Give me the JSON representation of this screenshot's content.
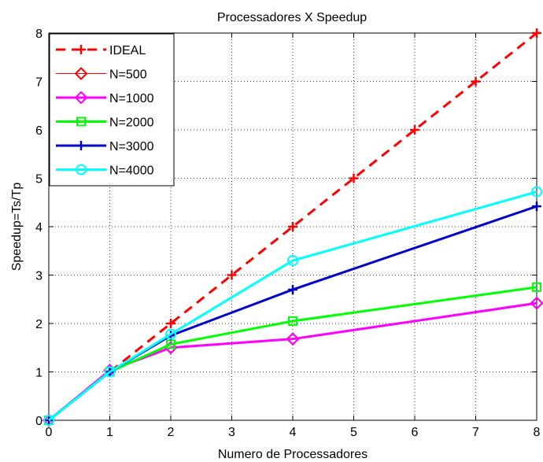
{
  "chart_data": {
    "type": "line",
    "title": "Processadores X Speedup",
    "xlabel": "Numero de Processadores",
    "ylabel": "Speedup=Ts/Tp",
    "xlim": [
      0,
      8
    ],
    "ylim": [
      0,
      8
    ],
    "xticks": [
      "0",
      "1",
      "2",
      "3",
      "4",
      "5",
      "6",
      "7",
      "8"
    ],
    "yticks": [
      "0",
      "1",
      "2",
      "3",
      "4",
      "5",
      "6",
      "7",
      "8"
    ],
    "grid": true,
    "legend_position": "top-left",
    "series": [
      {
        "name": "IDEAL",
        "color": "#ff0000",
        "dash": "dashed",
        "marker": "plus",
        "width": 3,
        "x": [
          0,
          1,
          2,
          3,
          4,
          5,
          6,
          7,
          8
        ],
        "y": [
          0,
          1,
          2,
          3,
          4,
          5,
          6,
          7,
          8
        ]
      },
      {
        "name": "N=500",
        "color": "#ff0000",
        "dash": "solid",
        "marker": "diamond",
        "width": 1,
        "x": [
          0,
          1,
          2,
          4,
          8
        ],
        "y": [
          0,
          1.03,
          1.5,
          1.68,
          2.42
        ]
      },
      {
        "name": "N=1000",
        "color": "#ff00ff",
        "dash": "solid",
        "marker": "diamond",
        "width": 3,
        "x": [
          0,
          1,
          2,
          4,
          8
        ],
        "y": [
          0,
          1.03,
          1.5,
          1.68,
          2.42
        ]
      },
      {
        "name": "N=2000",
        "color": "#00ff00",
        "dash": "solid",
        "marker": "square",
        "width": 3,
        "x": [
          0,
          1,
          2,
          4,
          8
        ],
        "y": [
          0,
          1.0,
          1.57,
          2.05,
          2.75
        ]
      },
      {
        "name": "N=3000",
        "color": "#0000cc",
        "dash": "solid",
        "marker": "plus",
        "width": 3,
        "x": [
          0,
          1,
          2,
          4,
          8
        ],
        "y": [
          0,
          1.0,
          1.75,
          2.7,
          4.42
        ]
      },
      {
        "name": "N=4000",
        "color": "#00ffff",
        "dash": "solid",
        "marker": "circle",
        "width": 3,
        "x": [
          0,
          1,
          2,
          4,
          8
        ],
        "y": [
          0,
          1.0,
          1.78,
          3.3,
          4.72
        ]
      }
    ]
  }
}
